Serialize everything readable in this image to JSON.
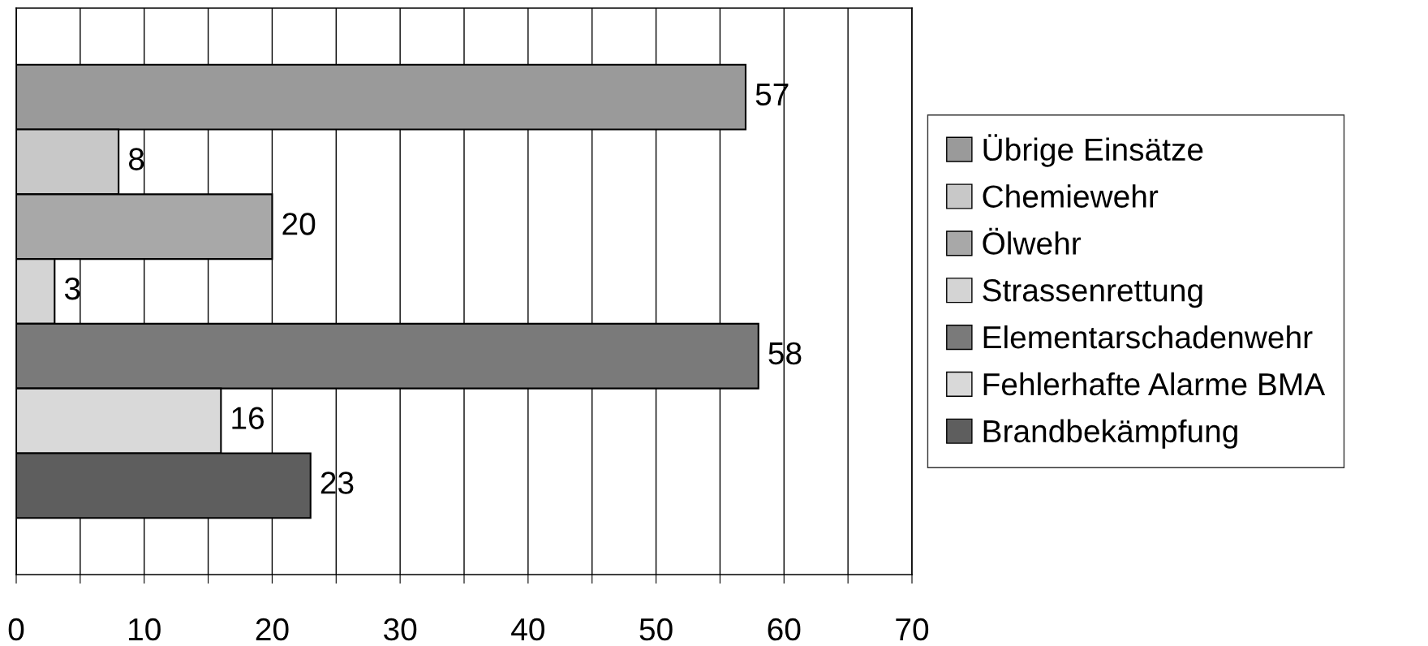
{
  "chart_data": {
    "type": "bar",
    "orientation": "horizontal",
    "categories": [
      null
    ],
    "series": [
      {
        "name": "Übrige Einsätze",
        "color": "#9a9a9a",
        "values": [
          57
        ]
      },
      {
        "name": "Chemiewehr",
        "color": "#c8c8c8",
        "values": [
          8
        ]
      },
      {
        "name": "Ölwehr",
        "color": "#a8a8a8",
        "values": [
          20
        ]
      },
      {
        "name": "Strassenrettung",
        "color": "#d4d4d4",
        "values": [
          3
        ]
      },
      {
        "name": "Elementarschadenwehr",
        "color": "#7a7a7a",
        "values": [
          58
        ]
      },
      {
        "name": "Fehlerhafte Alarme BMA",
        "color": "#d9d9d9",
        "values": [
          16
        ]
      },
      {
        "name": "Brandbekämpfung",
        "color": "#5e5e5e",
        "values": [
          23
        ]
      }
    ],
    "xlim": [
      0,
      70
    ],
    "xticks": [
      0,
      {
        "value": 5,
        "label": null
      },
      10,
      {
        "value": 15,
        "label": null
      },
      20,
      {
        "value": 25,
        "label": null
      },
      30,
      {
        "value": 35,
        "label": null
      },
      40,
      {
        "value": 45,
        "label": null
      },
      50,
      {
        "value": 55,
        "label": null
      },
      60,
      {
        "value": 65,
        "label": null
      },
      70
    ],
    "grid": "x",
    "legend": "right",
    "data_labels": true
  }
}
